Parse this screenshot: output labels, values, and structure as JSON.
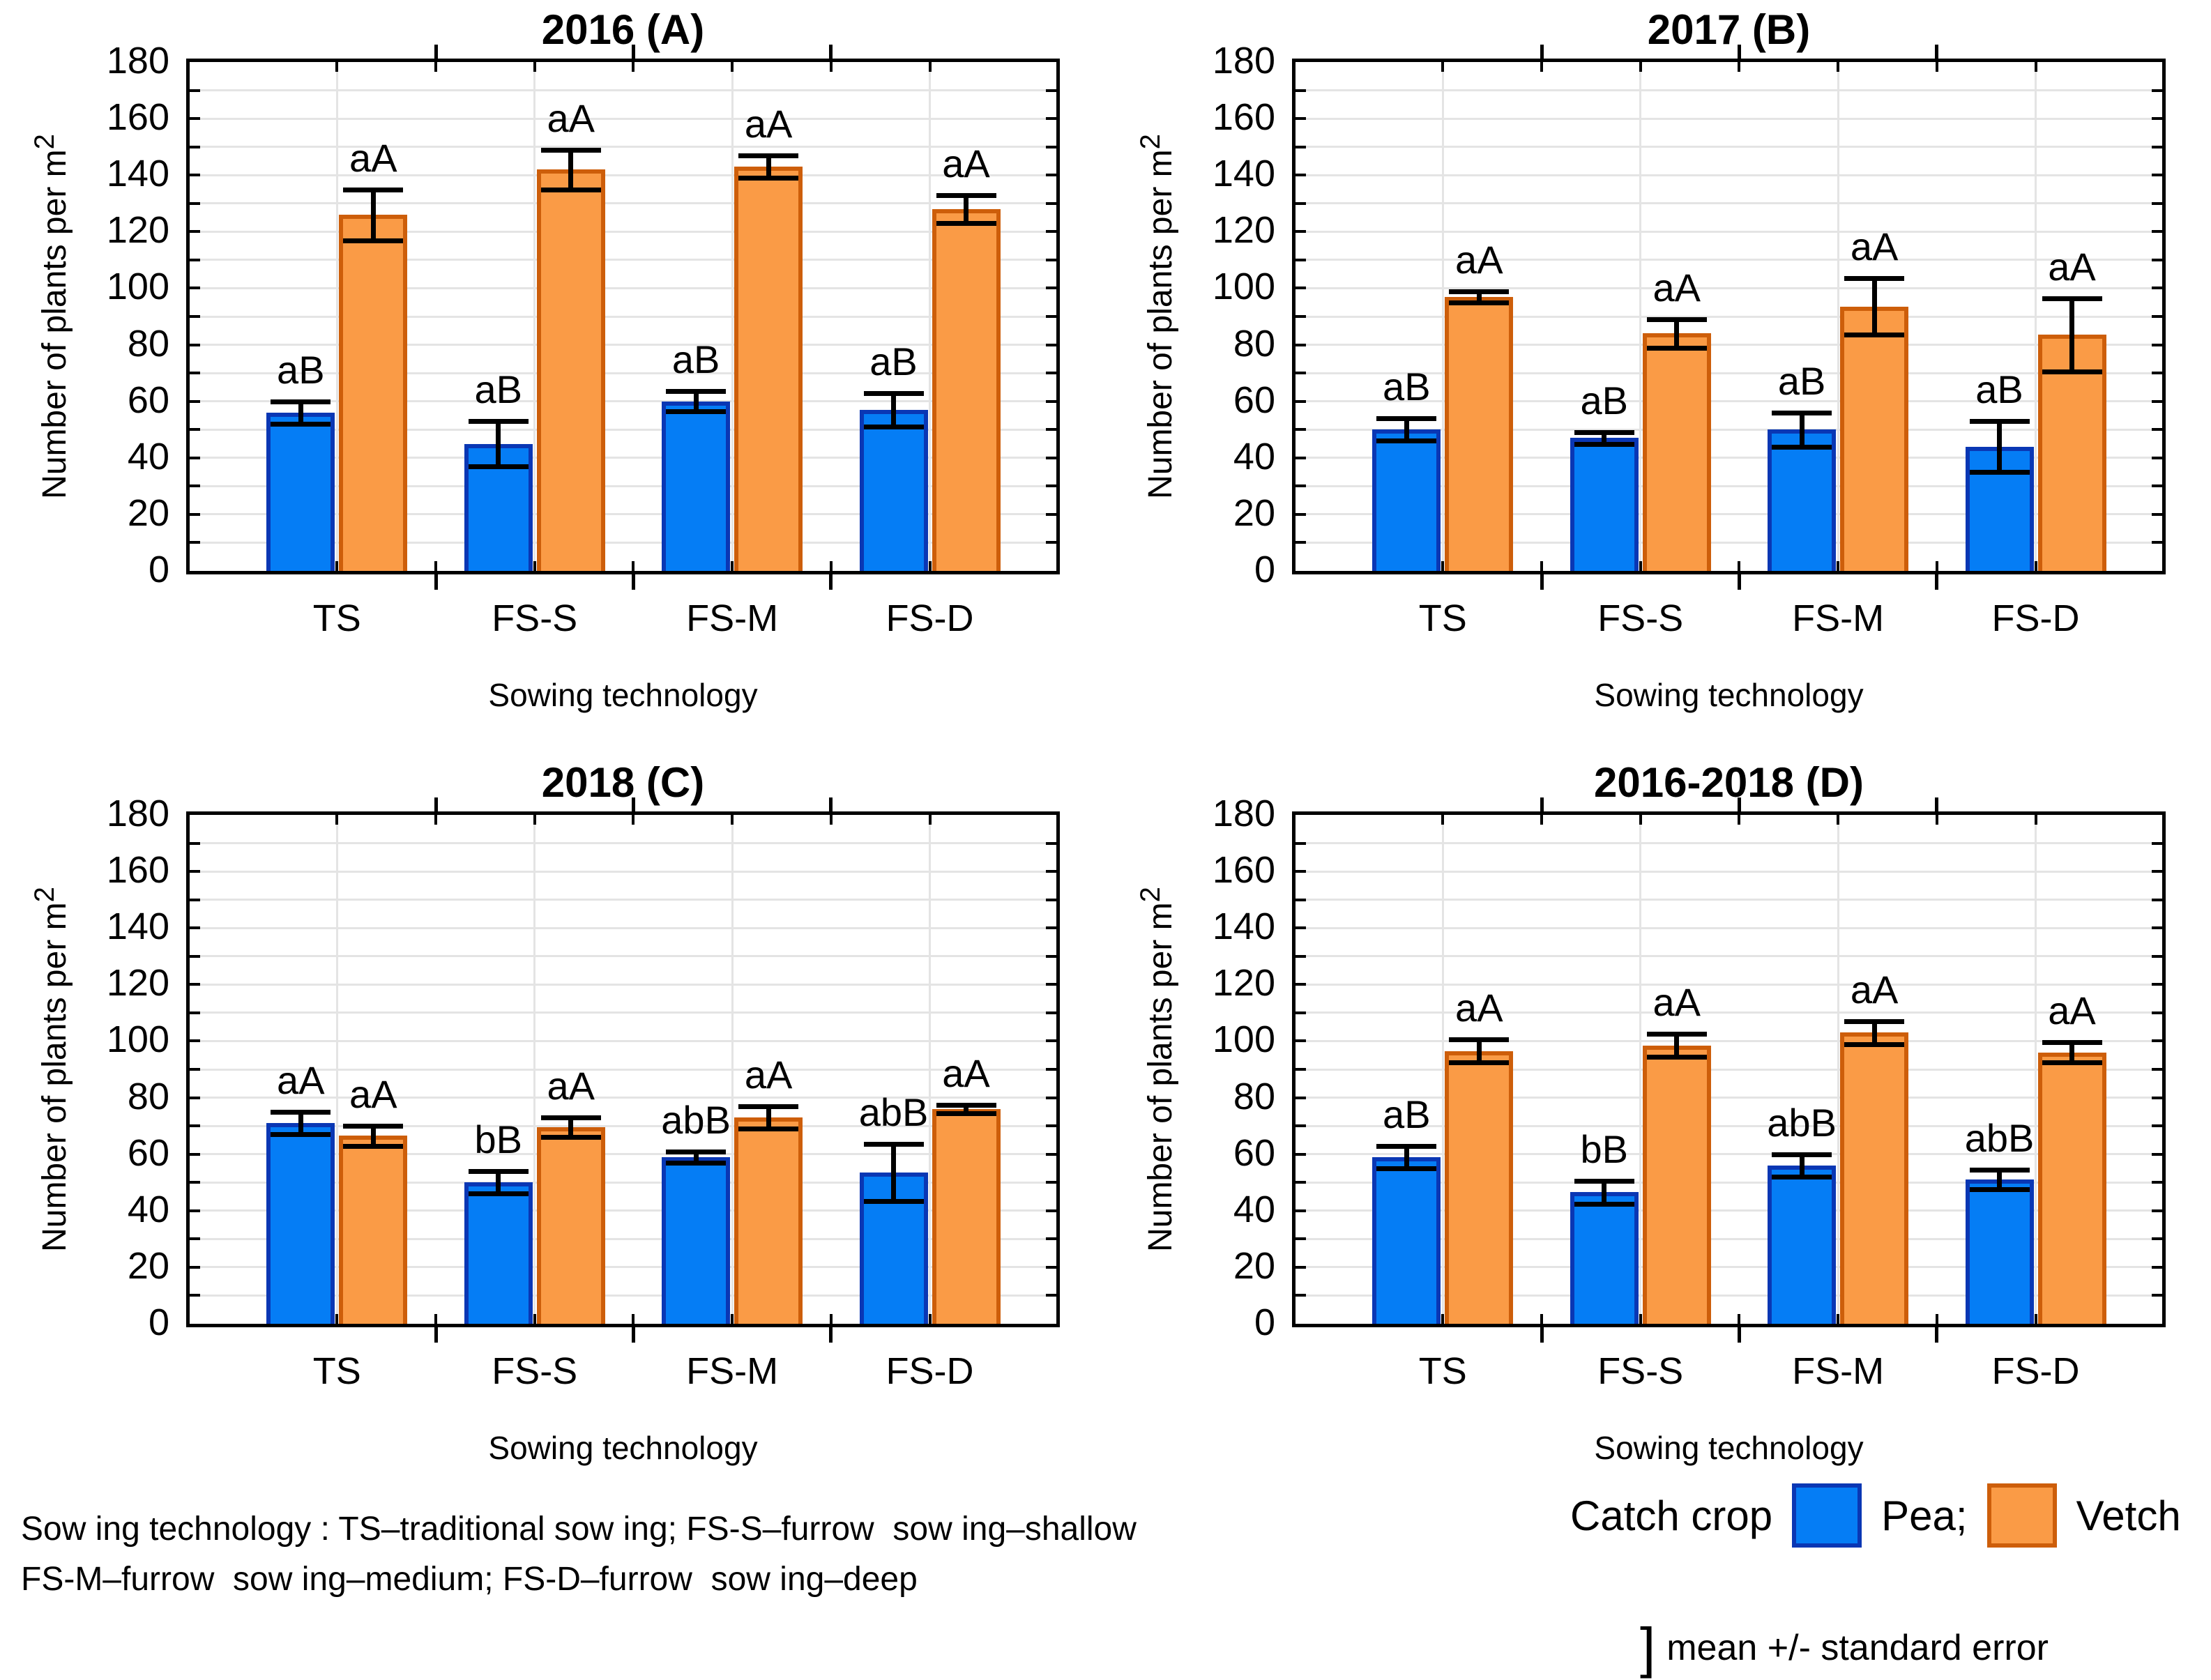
{
  "colors": {
    "background": "#FFFFFF",
    "axis": "#000000",
    "grid": "#E4E4E4",
    "pea_fill": "#057DF5",
    "pea_border": "#0A37B4",
    "vetch_fill": "#FA9B46",
    "vetch_border": "#CD5E0A"
  },
  "chart_data": [
    {
      "type": "bar",
      "title": "2016 (A)",
      "categories": [
        "TS",
        "FS-S",
        "FS-M",
        "FS-D"
      ],
      "xlabel": "Sowing technology",
      "ylabel": "Number of plants per m",
      "ylabel_sup": "2",
      "ylim": [
        0,
        180
      ],
      "ytick_step": 20,
      "grid_step": 10,
      "grid_on": true,
      "series": [
        {
          "name": "Pea",
          "values": [
            56,
            45,
            60,
            57
          ],
          "errors": [
            4,
            8,
            3.5,
            6
          ],
          "sig_labels": [
            "aB",
            "aB",
            "aB",
            "aB"
          ]
        },
        {
          "name": "Vetch",
          "values": [
            126,
            142,
            143,
            128
          ],
          "errors": [
            9,
            7,
            4,
            5
          ],
          "sig_labels": [
            "aA",
            "aA",
            "aA",
            "aA"
          ]
        }
      ]
    },
    {
      "type": "bar",
      "title": "2017 (B)",
      "categories": [
        "TS",
        "FS-S",
        "FS-M",
        "FS-D"
      ],
      "xlabel": "Sowing technology",
      "ylabel": "Number of plants per m",
      "ylabel_sup": "2",
      "ylim": [
        0,
        180
      ],
      "ytick_step": 20,
      "grid_step": 10,
      "grid_on": true,
      "series": [
        {
          "name": "Pea",
          "values": [
            50,
            47,
            50,
            44
          ],
          "errors": [
            4,
            2,
            6,
            9
          ],
          "sig_labels": [
            "aB",
            "aB",
            "aB",
            "aB"
          ]
        },
        {
          "name": "Vetch",
          "values": [
            97,
            84,
            93.5,
            83.5
          ],
          "errors": [
            2,
            5,
            10,
            13
          ],
          "sig_labels": [
            "aA",
            "aA",
            "aA",
            "aA"
          ]
        }
      ]
    },
    {
      "type": "bar",
      "title": "2018 (C)",
      "categories": [
        "TS",
        "FS-S",
        "FS-M",
        "FS-D"
      ],
      "xlabel": "Sowing technology",
      "ylabel": "Number of plants per m",
      "ylabel_sup": "2",
      "ylim": [
        0,
        180
      ],
      "ytick_step": 20,
      "grid_step": 10,
      "grid_on": true,
      "series": [
        {
          "name": "Pea",
          "values": [
            71,
            50,
            59,
            53.5
          ],
          "errors": [
            4,
            4,
            2,
            10
          ],
          "sig_labels": [
            "aA",
            "bB",
            "abB",
            "abB"
          ]
        },
        {
          "name": "Vetch",
          "values": [
            66.5,
            69.5,
            73,
            76
          ],
          "errors": [
            3.5,
            3.5,
            4,
            1.5
          ],
          "sig_labels": [
            "aA",
            "aA",
            "aA",
            "aA"
          ]
        }
      ]
    },
    {
      "type": "bar",
      "title": "2016-2018 (D)",
      "categories": [
        "TS",
        "FS-S",
        "FS-M",
        "FS-D"
      ],
      "xlabel": "Sowing technology",
      "ylabel": "Number of plants per m",
      "ylabel_sup": "2",
      "ylim": [
        0,
        180
      ],
      "ytick_step": 20,
      "grid_step": 10,
      "grid_on": true,
      "series": [
        {
          "name": "Pea",
          "values": [
            59,
            46.5,
            56,
            51
          ],
          "errors": [
            4,
            4,
            4,
            3.5
          ],
          "sig_labels": [
            "aB",
            "bB",
            "abB",
            "abB"
          ]
        },
        {
          "name": "Vetch",
          "values": [
            96.5,
            98.5,
            103,
            96
          ],
          "errors": [
            4,
            4,
            4,
            3.5
          ],
          "sig_labels": [
            "aA",
            "aA",
            "aA",
            "aA"
          ]
        }
      ]
    }
  ],
  "footnote": {
    "line1": "Sow ing technology : TS–traditional sow ing; FS-S–furrow  sow ing–shallow",
    "line2": "FS-M–furrow  sow ing–medium; FS-D–furrow  sow ing–deep"
  },
  "legend": {
    "title": "Catch crop",
    "items": [
      {
        "label": "Pea;",
        "fill": "#057DF5",
        "border": "#0A37B4"
      },
      {
        "label": "Vetch",
        "fill": "#FA9B46",
        "border": "#CD5E0A"
      }
    ],
    "note_bracket": "]",
    "note_text": "mean +/- standard error"
  }
}
